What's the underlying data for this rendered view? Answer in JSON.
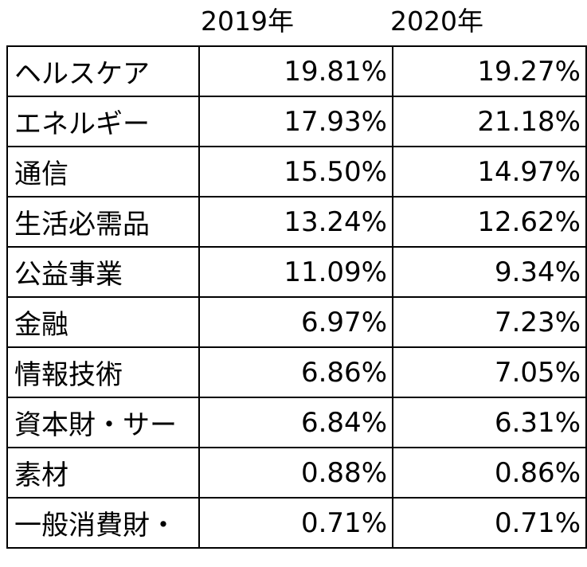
{
  "header": {
    "year1": "2019年",
    "year2": "2020年"
  },
  "rows": [
    {
      "name": "ヘルスケア",
      "v2019": "19.81%",
      "v2020": "19.27%"
    },
    {
      "name": "エネルギー",
      "v2019": "17.93%",
      "v2020": "21.18%"
    },
    {
      "name": "通信",
      "v2019": "15.50%",
      "v2020": "14.97%"
    },
    {
      "name": "生活必需品",
      "v2019": "13.24%",
      "v2020": "12.62%"
    },
    {
      "name": "公益事業",
      "v2019": "11.09%",
      "v2020": "9.34%"
    },
    {
      "name": "金融",
      "v2019": "6.97%",
      "v2020": "7.23%"
    },
    {
      "name": "情報技術",
      "v2019": "6.86%",
      "v2020": "7.05%"
    },
    {
      "name": "資本財・サー",
      "v2019": "6.84%",
      "v2020": "6.31%"
    },
    {
      "name": "素材",
      "v2019": "0.88%",
      "v2020": "0.86%"
    },
    {
      "name": "一般消費財・",
      "v2019": "0.71%",
      "v2020": "0.71%"
    }
  ]
}
